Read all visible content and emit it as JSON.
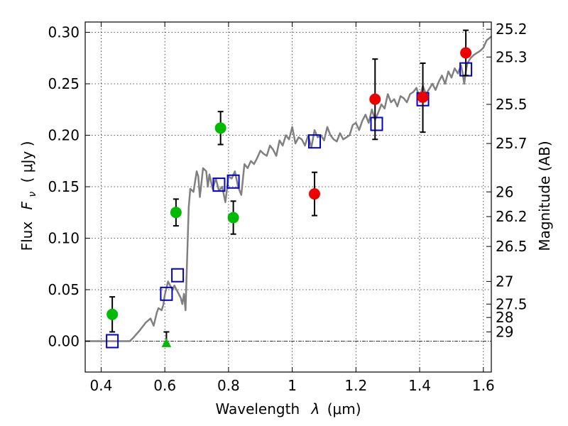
{
  "chart_data": {
    "type": "scatter",
    "xlabel_prefix": "Wavelength",
    "xlabel_sym": "λ",
    "xlabel_unit": "(μm)",
    "ylabel_prefix": "Flux",
    "ylabel_sym": "F",
    "ylabel_sub": "ν",
    "ylabel_unit": "( μJy )",
    "y2label": "Magnitude (AB)",
    "xlim": [
      0.35,
      1.625
    ],
    "ylim": [
      -0.03,
      0.31
    ],
    "grid": true,
    "x_ticks": [
      0.4,
      0.6,
      0.8,
      1.0,
      1.2,
      1.4,
      1.6
    ],
    "x_tick_labels": [
      "0.4",
      "0.6",
      "0.8",
      "1",
      "1.2",
      "1.4",
      "1.6"
    ],
    "y_ticks": [
      0.0,
      0.05,
      0.1,
      0.15,
      0.2,
      0.25,
      0.3
    ],
    "y_tick_labels": [
      "0.00",
      "0.05",
      "0.10",
      "0.15",
      "0.20",
      "0.25",
      "0.30"
    ],
    "y2_ticks": [
      {
        "label": "25.2",
        "flux": 0.303
      },
      {
        "label": "25.3",
        "flux": 0.276
      },
      {
        "label": "25.5",
        "flux": 0.23
      },
      {
        "label": "25.7",
        "flux": 0.192
      },
      {
        "label": "26",
        "flux": 0.145
      },
      {
        "label": "26.2",
        "flux": 0.121
      },
      {
        "label": "26.5",
        "flux": 0.092
      },
      {
        "label": "27",
        "flux": 0.058
      },
      {
        "label": "27.5",
        "flux": 0.036
      },
      {
        "label": "28",
        "flux": 0.023
      },
      {
        "label": "29",
        "flux": 0.009
      }
    ],
    "model_spectrum": {
      "color": "#808080",
      "x": [
        0.35,
        0.4,
        0.45,
        0.49,
        0.5,
        0.52,
        0.54,
        0.555,
        0.565,
        0.575,
        0.58,
        0.59,
        0.595,
        0.6,
        0.61,
        0.615,
        0.62,
        0.625,
        0.63,
        0.64,
        0.65,
        0.655,
        0.66,
        0.665,
        0.67,
        0.675,
        0.68,
        0.69,
        0.7,
        0.705,
        0.71,
        0.72,
        0.73,
        0.735,
        0.74,
        0.75,
        0.76,
        0.77,
        0.78,
        0.79,
        0.8,
        0.81,
        0.82,
        0.83,
        0.84,
        0.85,
        0.86,
        0.87,
        0.88,
        0.89,
        0.9,
        0.91,
        0.92,
        0.93,
        0.94,
        0.95,
        0.96,
        0.97,
        0.98,
        0.99,
        1.0,
        1.01,
        1.02,
        1.03,
        1.04,
        1.05,
        1.06,
        1.07,
        1.08,
        1.09,
        1.1,
        1.11,
        1.12,
        1.13,
        1.14,
        1.15,
        1.16,
        1.17,
        1.18,
        1.19,
        1.2,
        1.21,
        1.22,
        1.23,
        1.24,
        1.25,
        1.26,
        1.27,
        1.28,
        1.29,
        1.3,
        1.31,
        1.32,
        1.33,
        1.34,
        1.35,
        1.36,
        1.37,
        1.38,
        1.39,
        1.4,
        1.41,
        1.42,
        1.43,
        1.44,
        1.45,
        1.46,
        1.47,
        1.48,
        1.49,
        1.5,
        1.51,
        1.52,
        1.53,
        1.535,
        1.54,
        1.545,
        1.55,
        1.56,
        1.57,
        1.58,
        1.59,
        1.6,
        1.61,
        1.625
      ],
      "y": [
        0.0,
        0.0,
        0.0,
        0.0,
        0.003,
        0.01,
        0.018,
        0.022,
        0.015,
        0.028,
        0.032,
        0.03,
        0.035,
        0.045,
        0.058,
        0.055,
        0.052,
        0.05,
        0.054,
        0.048,
        0.042,
        0.036,
        0.046,
        0.03,
        0.08,
        0.13,
        0.148,
        0.145,
        0.165,
        0.16,
        0.14,
        0.168,
        0.165,
        0.15,
        0.162,
        0.148,
        0.158,
        0.146,
        0.15,
        0.135,
        0.16,
        0.158,
        0.165,
        0.15,
        0.142,
        0.172,
        0.168,
        0.175,
        0.172,
        0.178,
        0.185,
        0.182,
        0.18,
        0.19,
        0.186,
        0.18,
        0.195,
        0.19,
        0.2,
        0.196,
        0.208,
        0.192,
        0.198,
        0.196,
        0.19,
        0.2,
        0.188,
        0.205,
        0.198,
        0.2,
        0.195,
        0.208,
        0.2,
        0.196,
        0.194,
        0.202,
        0.196,
        0.198,
        0.2,
        0.21,
        0.212,
        0.205,
        0.214,
        0.22,
        0.212,
        0.225,
        0.215,
        0.222,
        0.23,
        0.226,
        0.24,
        0.232,
        0.235,
        0.228,
        0.238,
        0.236,
        0.232,
        0.24,
        0.242,
        0.246,
        0.236,
        0.248,
        0.24,
        0.245,
        0.25,
        0.244,
        0.252,
        0.258,
        0.25,
        0.262,
        0.256,
        0.265,
        0.26,
        0.268,
        0.26,
        0.25,
        0.262,
        0.27,
        0.275,
        0.278,
        0.28,
        0.282,
        0.285,
        0.292,
        0.296
      ]
    },
    "series": [
      {
        "name": "",
        "marker": "open-square",
        "color": "#0000cc",
        "x": [
          0.435,
          0.605,
          0.64,
          0.77,
          0.815,
          1.07,
          1.265,
          1.41,
          1.545
        ],
        "y": [
          0.0,
          0.046,
          0.064,
          0.152,
          0.155,
          0.194,
          0.211,
          0.235,
          0.264
        ]
      },
      {
        "name": "",
        "marker": "circle",
        "color": "#00bb00",
        "x": [
          0.435,
          0.635,
          0.775,
          0.815
        ],
        "y": [
          0.026,
          0.125,
          0.207,
          0.12
        ],
        "yerr_low": [
          0.017,
          0.013,
          0.016,
          0.016
        ],
        "yerr_high": [
          0.017,
          0.013,
          0.016,
          0.016
        ]
      },
      {
        "name": "",
        "marker": "triangle",
        "color": "#00bb00",
        "x": [
          0.605
        ],
        "y": [
          -0.002
        ],
        "yerr_low": [
          0.0
        ],
        "yerr_high": [
          0.011
        ]
      },
      {
        "name": "",
        "marker": "circle",
        "color": "#ee0000",
        "x": [
          1.07,
          1.26,
          1.41,
          1.545
        ],
        "y": [
          0.143,
          0.235,
          0.237,
          0.28
        ],
        "yerr_low": [
          0.021,
          0.039,
          0.034,
          0.022
        ],
        "yerr_high": [
          0.021,
          0.039,
          0.033,
          0.022
        ]
      }
    ]
  }
}
